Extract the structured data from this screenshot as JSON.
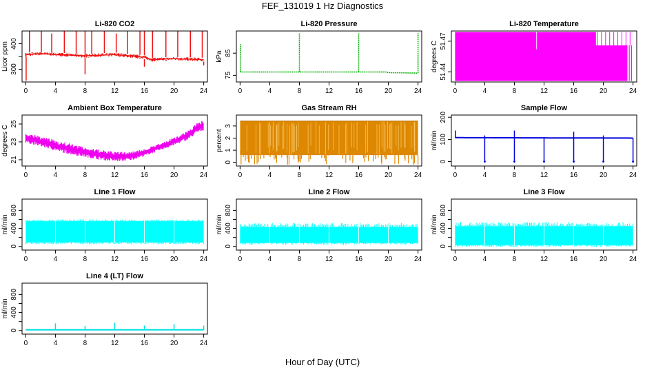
{
  "page": {
    "title": "FEF_131019  1 Hz Diagnostics",
    "xlabel": "Hour of Day (UTC)"
  },
  "chart_data": [
    {
      "type": "line",
      "id": "co2",
      "title": "Li-820 CO2",
      "ylabel": "Licor ppm",
      "color": "#ee1111",
      "xticks": [
        0,
        4,
        8,
        12,
        16,
        20,
        24
      ],
      "yticks": [
        300,
        350,
        400
      ],
      "ytick_labels": [
        "300",
        "",
        "400"
      ],
      "xlim": [
        -0.5,
        24.5
      ],
      "ylim": [
        250,
        450
      ],
      "band": [
        [
          0,
          350,
          365
        ],
        [
          2,
          355,
          368
        ],
        [
          4,
          352,
          365
        ],
        [
          8,
          345,
          360
        ],
        [
          12,
          350,
          365
        ],
        [
          16,
          340,
          355
        ],
        [
          17,
          330,
          345
        ],
        [
          20,
          335,
          348
        ],
        [
          24,
          330,
          345
        ]
      ],
      "spikes": [
        [
          0.5,
          450
        ],
        [
          2.1,
          450
        ],
        [
          3.5,
          440
        ],
        [
          5.2,
          450
        ],
        [
          6.8,
          450
        ],
        [
          8.0,
          450
        ],
        [
          8.9,
          450
        ],
        [
          10.6,
          450
        ],
        [
          12.2,
          440
        ],
        [
          13.7,
          450
        ],
        [
          15.4,
          450
        ],
        [
          16.0,
          450
        ],
        [
          17.1,
          450
        ],
        [
          18.9,
          450
        ],
        [
          20.5,
          450
        ],
        [
          22.2,
          450
        ],
        [
          23.8,
          450
        ]
      ],
      "dips": [
        [
          0.05,
          255
        ],
        [
          8.0,
          280
        ],
        [
          16.0,
          310
        ],
        [
          24.0,
          315
        ]
      ]
    },
    {
      "type": "line",
      "id": "pressure",
      "title": "Li-820 Pressure",
      "ylabel": "kPa",
      "color": "#00b000",
      "xticks": [
        0,
        4,
        8,
        12,
        16,
        20,
        24
      ],
      "yticks": [
        75,
        85
      ],
      "ytick_labels": [
        "75",
        "85"
      ],
      "xlim": [
        -0.5,
        24.5
      ],
      "ylim": [
        72,
        95
      ],
      "baseline": [
        [
          0,
          76.5
        ],
        [
          19.8,
          76.5
        ],
        [
          20,
          76.2
        ],
        [
          24,
          76.0
        ]
      ],
      "spikes": [
        [
          0.05,
          89
        ],
        [
          8.0,
          94
        ],
        [
          16.0,
          94
        ],
        [
          24.0,
          94
        ]
      ]
    },
    {
      "type": "area",
      "id": "licor_temp",
      "title": "Li-820 Temperature",
      "ylabel": "degrees C",
      "color": "#ff00ff",
      "xticks": [
        0,
        4,
        8,
        12,
        16,
        20,
        24
      ],
      "yticks": [
        51.44,
        51.47
      ],
      "ytick_labels": [
        "51.44",
        "51.47"
      ],
      "xlim": [
        -0.5,
        24.5
      ],
      "ylim": [
        51.43,
        51.48
      ],
      "fill_top": 51.479,
      "fill_bottom": 51.431
    },
    {
      "type": "area",
      "id": "ambient_temp",
      "title": "Ambient Box Temperature",
      "ylabel": "degrees C",
      "color": "#ee00ee",
      "xticks": [
        0,
        4,
        8,
        12,
        16,
        20,
        24
      ],
      "yticks": [
        21,
        23,
        25
      ],
      "ytick_labels": [
        "21",
        "23",
        "25"
      ],
      "xlim": [
        -0.5,
        24.5
      ],
      "ylim": [
        20.3,
        26.0
      ],
      "upper": [
        [
          0,
          24.0
        ],
        [
          2,
          23.6
        ],
        [
          4,
          23.2
        ],
        [
          6,
          22.8
        ],
        [
          8,
          22.4
        ],
        [
          10,
          22.1
        ],
        [
          12,
          21.9
        ],
        [
          14,
          21.9
        ],
        [
          16,
          22.2
        ],
        [
          18,
          22.8
        ],
        [
          20,
          23.5
        ],
        [
          22,
          24.3
        ],
        [
          23,
          25.1
        ],
        [
          24,
          25.5
        ]
      ],
      "lower": [
        [
          0,
          22.9
        ],
        [
          2,
          22.5
        ],
        [
          4,
          22.0
        ],
        [
          6,
          21.6
        ],
        [
          8,
          21.3
        ],
        [
          10,
          21.0
        ],
        [
          12,
          20.8
        ],
        [
          14,
          20.9
        ],
        [
          16,
          21.4
        ],
        [
          18,
          22.0
        ],
        [
          20,
          22.6
        ],
        [
          22,
          23.3
        ],
        [
          23,
          23.9
        ],
        [
          24,
          24.3
        ]
      ]
    },
    {
      "type": "area",
      "id": "gas_rh",
      "title": "Gas Stream RH",
      "ylabel": "percent",
      "color": "#dd8800",
      "xticks": [
        0,
        4,
        8,
        12,
        16,
        20,
        24
      ],
      "yticks": [
        0,
        1,
        2,
        3
      ],
      "ytick_labels": [
        "0",
        "1",
        "2",
        "3"
      ],
      "xlim": [
        -0.5,
        24.5
      ],
      "ylim": [
        -0.3,
        3.9
      ],
      "fill_top": 3.4,
      "fill_bottom": 0.6,
      "dip_min": -0.2,
      "dip_count": 70
    },
    {
      "type": "line",
      "id": "sample_flow",
      "title": "Sample Flow",
      "ylabel": "ml/min",
      "color": "#0000dd",
      "xticks": [
        0,
        4,
        8,
        12,
        16,
        20,
        24
      ],
      "yticks": [
        0,
        100,
        200
      ],
      "ytick_labels": [
        "0",
        "100",
        "200"
      ],
      "xlim": [
        -0.5,
        24.5
      ],
      "ylim": [
        -20,
        210
      ],
      "baseline": [
        [
          0,
          108
        ],
        [
          24,
          106
        ]
      ],
      "dips": [
        [
          4.0,
          0
        ],
        [
          8.0,
          0
        ],
        [
          12.0,
          0
        ],
        [
          16.0,
          0
        ],
        [
          20.0,
          0
        ],
        [
          24.0,
          0
        ]
      ],
      "spikes": [
        [
          0.05,
          140
        ],
        [
          8.0,
          140
        ],
        [
          16.0,
          135
        ],
        [
          4.0,
          118
        ],
        [
          20.0,
          118
        ]
      ]
    },
    {
      "type": "area",
      "id": "line1",
      "title": "Line 1 Flow",
      "ylabel": "ml/min",
      "color": "#00ffff",
      "xticks": [
        0,
        4,
        8,
        12,
        16,
        20,
        24
      ],
      "yticks": [
        0,
        200,
        400,
        600,
        800
      ],
      "ytick_labels": [
        "0",
        "",
        "400",
        "",
        "800"
      ],
      "xlim": [
        -0.5,
        24.5
      ],
      "ylim": [
        -80,
        1050
      ],
      "fill_top": 560,
      "fill_bottom": 90,
      "gaps": [
        4,
        8,
        12,
        16,
        20
      ]
    },
    {
      "type": "area",
      "id": "line2",
      "title": "Line 2 Flow",
      "ylabel": "ml/min",
      "color": "#00ffff",
      "xticks": [
        0,
        4,
        8,
        12,
        16,
        20,
        24
      ],
      "yticks": [
        0,
        200,
        400,
        600,
        800
      ],
      "ytick_labels": [
        "0",
        "",
        "400",
        "",
        "800"
      ],
      "xlim": [
        -0.5,
        24.5
      ],
      "ylim": [
        -80,
        1050
      ],
      "fill_top": 430,
      "fill_bottom": 80,
      "gaps": [
        4,
        8,
        12,
        16,
        20
      ]
    },
    {
      "type": "area",
      "id": "line3",
      "title": "Line 3 Flow",
      "ylabel": "ml/min",
      "color": "#00ffff",
      "xticks": [
        0,
        4,
        8,
        12,
        16,
        20,
        24
      ],
      "yticks": [
        0,
        200,
        400,
        600,
        800
      ],
      "ytick_labels": [
        "0",
        "",
        "400",
        "",
        "800"
      ],
      "xlim": [
        -0.5,
        24.5
      ],
      "ylim": [
        -80,
        1050
      ],
      "fill_top": 450,
      "fill_bottom": 30,
      "gaps": [
        4,
        8,
        12,
        16,
        20
      ]
    },
    {
      "type": "line",
      "id": "line4",
      "title": "Line 4 (LT) Flow",
      "ylabel": "ml/min",
      "color": "#00e0e0",
      "xticks": [
        0,
        4,
        8,
        12,
        16,
        20,
        24
      ],
      "yticks": [
        0,
        200,
        400,
        600,
        800
      ],
      "ytick_labels": [
        "0",
        "",
        "400",
        "",
        "800"
      ],
      "xlim": [
        -0.5,
        24.5
      ],
      "ylim": [
        -80,
        1050
      ],
      "baseline": [
        [
          0,
          15
        ],
        [
          24,
          15
        ]
      ],
      "spikes": [
        [
          4.0,
          160
        ],
        [
          8.0,
          100
        ],
        [
          12.0,
          170
        ],
        [
          16.0,
          110
        ],
        [
          20.0,
          140
        ],
        [
          24.0,
          110
        ]
      ]
    }
  ]
}
